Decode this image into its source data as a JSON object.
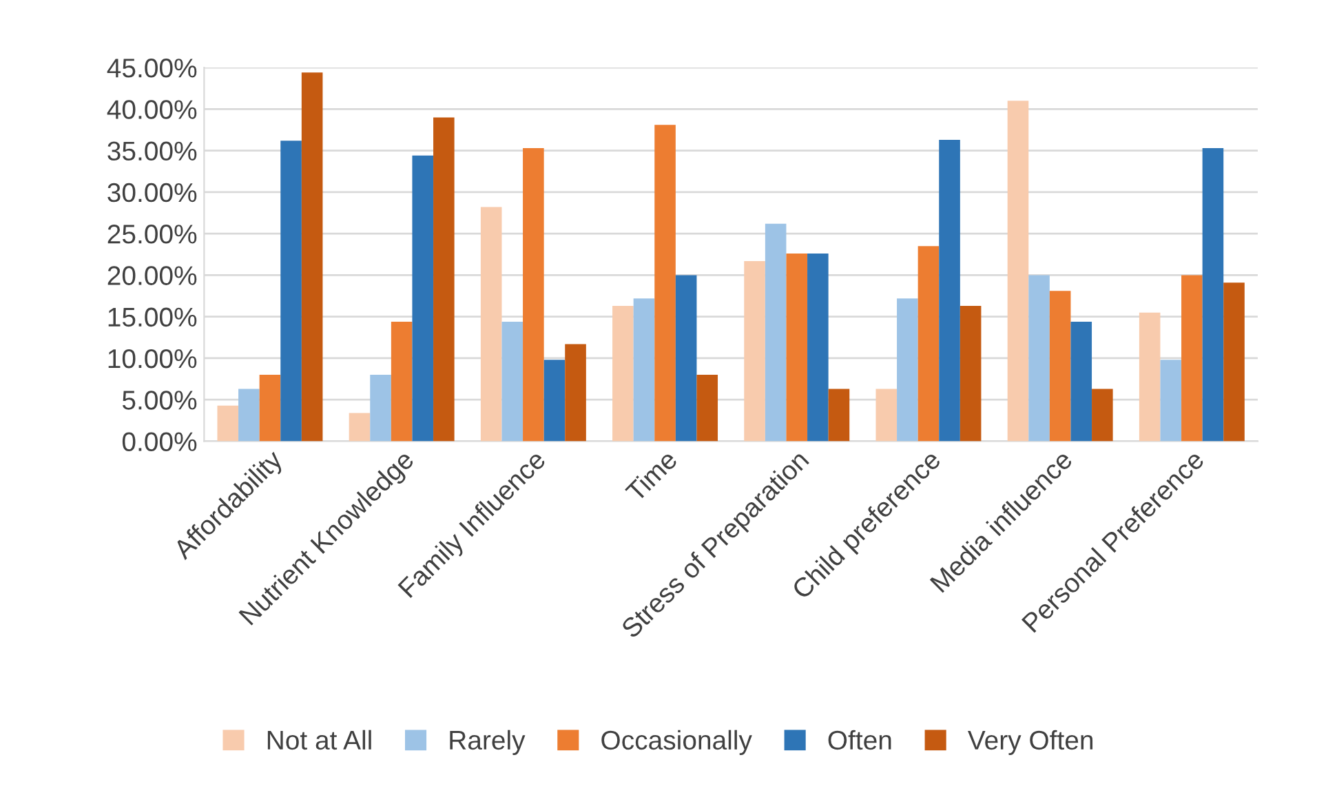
{
  "chart_data": {
    "type": "bar",
    "categories": [
      "Affordability",
      "Nutrient Knowledge",
      "Family Influence",
      "Time",
      "Stress of Preparation",
      "Child preference",
      "Media influence",
      "Personal Preference"
    ],
    "series": [
      {
        "name": "Not at All",
        "color": "#f8cbad",
        "values": [
          4.3,
          3.4,
          28.2,
          16.3,
          21.7,
          6.3,
          41.0,
          15.5
        ]
      },
      {
        "name": "Rarely",
        "color": "#9dc3e6",
        "values": [
          6.3,
          8.0,
          14.4,
          17.2,
          26.2,
          17.2,
          20.0,
          9.8
        ]
      },
      {
        "name": "Occasionally",
        "color": "#ed7d31",
        "values": [
          8.0,
          14.4,
          35.3,
          38.1,
          22.6,
          23.5,
          18.1,
          20.0
        ]
      },
      {
        "name": "Often",
        "color": "#2e75b6",
        "values": [
          36.2,
          34.4,
          9.8,
          20.0,
          22.6,
          36.3,
          14.4,
          35.3
        ]
      },
      {
        "name": "Very Often",
        "color": "#c55a11",
        "values": [
          44.4,
          39.0,
          11.7,
          8.0,
          6.3,
          16.3,
          6.3,
          19.1
        ]
      }
    ],
    "ylim": [
      0,
      45
    ],
    "yticks": [
      {
        "value": 0,
        "label": "0.00%"
      },
      {
        "value": 5,
        "label": "5.00%"
      },
      {
        "value": 10,
        "label": "10.00%"
      },
      {
        "value": 15,
        "label": "15.00%"
      },
      {
        "value": 20,
        "label": "20.00%"
      },
      {
        "value": 25,
        "label": "25.00%"
      },
      {
        "value": 30,
        "label": "30.00%"
      },
      {
        "value": 35,
        "label": "35.00%"
      },
      {
        "value": 40,
        "label": "40.00%"
      },
      {
        "value": 45,
        "label": "45.00%"
      }
    ],
    "grid": "y",
    "legend": "bottom"
  }
}
